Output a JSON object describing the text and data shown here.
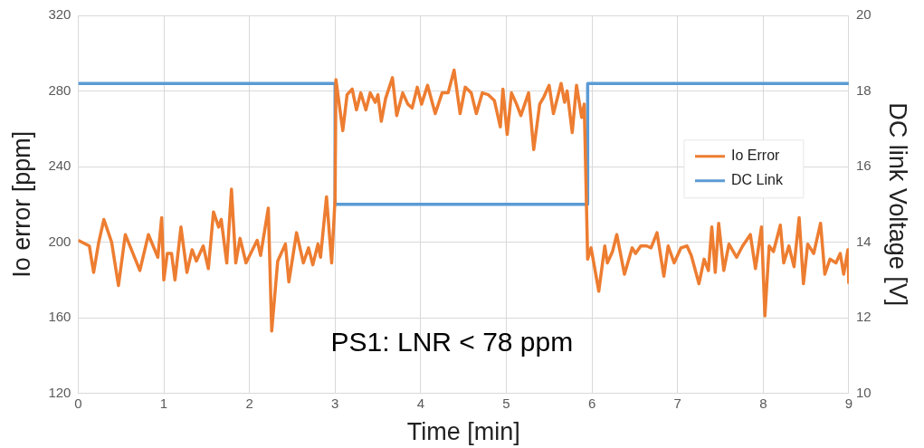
{
  "chart_data": {
    "type": "line",
    "xlabel": "Time [min]",
    "ylabel": "Io error [ppm]",
    "y2label": "DC link Voltage [V]",
    "xlim": [
      0,
      9
    ],
    "xticks": [
      0,
      1,
      2,
      3,
      4,
      5,
      6,
      7,
      8,
      9
    ],
    "ylim": [
      120,
      320
    ],
    "yticks": [
      120,
      160,
      200,
      240,
      280,
      320
    ],
    "y2lim": [
      10,
      20
    ],
    "y2ticks": [
      10,
      12,
      14,
      16,
      18,
      20
    ],
    "grid": true,
    "legend": "right",
    "marker": "none",
    "line_style": "solid",
    "annotations": [
      "PS1: LNR < 78 ppm"
    ],
    "series": [
      {
        "name": "Io Error",
        "color": "#ed7d31",
        "x": [
          0,
          0.13,
          0.18,
          0.24,
          0.3,
          0.39,
          0.47,
          0.55,
          0.72,
          0.82,
          0.93,
          0.975,
          1.0,
          1.04,
          1.09,
          1.13,
          1.2,
          1.27,
          1.33,
          1.38,
          1.46,
          1.52,
          1.58,
          1.64,
          1.67,
          1.735,
          1.79,
          1.84,
          1.89,
          1.96,
          2.09,
          2.13,
          2.22,
          2.26,
          2.33,
          2.42,
          2.46,
          2.55,
          2.63,
          2.69,
          2.74,
          2.8,
          2.83,
          2.9,
          2.96,
          3.0,
          3.01,
          3.09,
          3.14,
          3.2,
          3.25,
          3.3,
          3.36,
          3.41,
          3.47,
          3.5,
          3.54,
          3.59,
          3.67,
          3.72,
          3.79,
          3.85,
          3.9,
          3.96,
          4.01,
          4.08,
          4.17,
          4.25,
          4.32,
          4.39,
          4.46,
          4.52,
          4.59,
          4.65,
          4.72,
          4.79,
          4.86,
          4.93,
          4.96,
          5.01,
          5.06,
          5.12,
          5.17,
          5.26,
          5.32,
          5.39,
          5.44,
          5.5,
          5.55,
          5.64,
          5.68,
          5.71,
          5.77,
          5.82,
          5.88,
          5.91,
          5.95,
          5.99,
          6.08,
          6.15,
          6.18,
          6.24,
          6.29,
          6.38,
          6.47,
          6.51,
          6.57,
          6.64,
          6.69,
          6.76,
          6.84,
          6.89,
          6.96,
          7.04,
          7.11,
          7.16,
          7.25,
          7.31,
          7.36,
          7.4,
          7.44,
          7.48,
          7.54,
          7.6,
          7.69,
          7.76,
          7.85,
          7.91,
          7.98,
          8.02,
          8.07,
          8.12,
          8.2,
          8.24,
          8.3,
          8.36,
          8.42,
          8.47,
          8.52,
          8.59,
          8.67,
          8.72,
          8.78,
          8.85,
          8.9,
          8.94,
          8.99,
          9.0
        ],
        "values": [
          201,
          198,
          184,
          200,
          212,
          200,
          177,
          204,
          185,
          204,
          192,
          213,
          180,
          194,
          194,
          180,
          208,
          184,
          196,
          190,
          198,
          186,
          216,
          208,
          212,
          189,
          228,
          189,
          202,
          189,
          201,
          193,
          218,
          153,
          190,
          199,
          179,
          205,
          189,
          197,
          188,
          199,
          192,
          224,
          189,
          223,
          286,
          259,
          278,
          281,
          270,
          279,
          270,
          279,
          274,
          278,
          264,
          276,
          287,
          267,
          279,
          273,
          271,
          282,
          273,
          283,
          268,
          279,
          279,
          291,
          268,
          282,
          279,
          268,
          279,
          278,
          275,
          261,
          281,
          257,
          279,
          273,
          267,
          279,
          249,
          273,
          277,
          283,
          268,
          284,
          274,
          280,
          258,
          283,
          266,
          273,
          191,
          197,
          174,
          198,
          189,
          195,
          204,
          183,
          197,
          194,
          198,
          198,
          197,
          205,
          182,
          198,
          189,
          197,
          198,
          193,
          178,
          191,
          185,
          208,
          184,
          210,
          185,
          199,
          192,
          198,
          204,
          186,
          208,
          161,
          198,
          195,
          209,
          189,
          198,
          187,
          213,
          178,
          199,
          194,
          210,
          183,
          191,
          189,
          194,
          183,
          196,
          178
        ]
      },
      {
        "name": "DC Link",
        "color": "#5b9bd5",
        "axis": "y2",
        "x": [
          0,
          3.0,
          3.0,
          5.95,
          5.95,
          9
        ],
        "values": [
          18.2,
          18.2,
          15,
          15,
          18.2,
          18.2
        ]
      }
    ]
  }
}
